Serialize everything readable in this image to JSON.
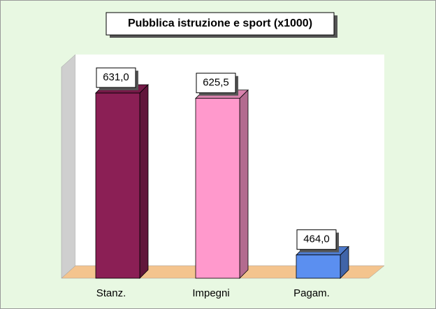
{
  "chart_data": {
    "type": "bar3d",
    "title": "Pubblica istruzione e sport (x1000)",
    "categories": [
      "Stanz.",
      "Impegni",
      "Pagam."
    ],
    "values": [
      631.0,
      625.5,
      464.0
    ],
    "value_labels": [
      "631,0",
      "625,5",
      "464,0"
    ],
    "colors": [
      "#8b1f55",
      "#ff99cc",
      "#5b8ff0"
    ],
    "ylim": [
      440,
      670
    ]
  }
}
